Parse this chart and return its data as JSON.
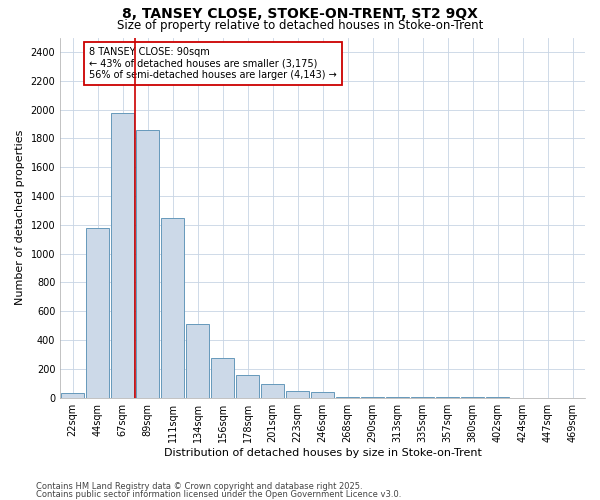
{
  "title1": "8, TANSEY CLOSE, STOKE-ON-TRENT, ST2 9QX",
  "title2": "Size of property relative to detached houses in Stoke-on-Trent",
  "xlabel": "Distribution of detached houses by size in Stoke-on-Trent",
  "ylabel": "Number of detached properties",
  "categories": [
    "22sqm",
    "44sqm",
    "67sqm",
    "89sqm",
    "111sqm",
    "134sqm",
    "156sqm",
    "178sqm",
    "201sqm",
    "223sqm",
    "246sqm",
    "268sqm",
    "290sqm",
    "313sqm",
    "335sqm",
    "357sqm",
    "380sqm",
    "402sqm",
    "424sqm",
    "447sqm",
    "469sqm"
  ],
  "values": [
    30,
    1175,
    1975,
    1855,
    1245,
    515,
    275,
    155,
    95,
    50,
    38,
    5,
    5,
    5,
    3,
    2,
    2,
    2,
    1,
    1,
    1
  ],
  "bar_color": "#ccd9e8",
  "bar_edge_color": "#6699bb",
  "grid_color": "#c8d4e4",
  "bg_color": "#ffffff",
  "plot_bg_color": "#ffffff",
  "annotation_text": "8 TANSEY CLOSE: 90sqm\n← 43% of detached houses are smaller (3,175)\n56% of semi-detached houses are larger (4,143) →",
  "annotation_box_color": "#ffffff",
  "annotation_box_edge": "#cc0000",
  "vline_color": "#cc0000",
  "vline_x_index": 3,
  "ylim": [
    0,
    2500
  ],
  "yticks": [
    0,
    200,
    400,
    600,
    800,
    1000,
    1200,
    1400,
    1600,
    1800,
    2000,
    2200,
    2400
  ],
  "footer1": "Contains HM Land Registry data © Crown copyright and database right 2025.",
  "footer2": "Contains public sector information licensed under the Open Government Licence v3.0.",
  "title_fontsize": 10,
  "subtitle_fontsize": 8.5,
  "tick_fontsize": 7,
  "label_fontsize": 8,
  "annotation_fontsize": 7,
  "footer_fontsize": 6
}
